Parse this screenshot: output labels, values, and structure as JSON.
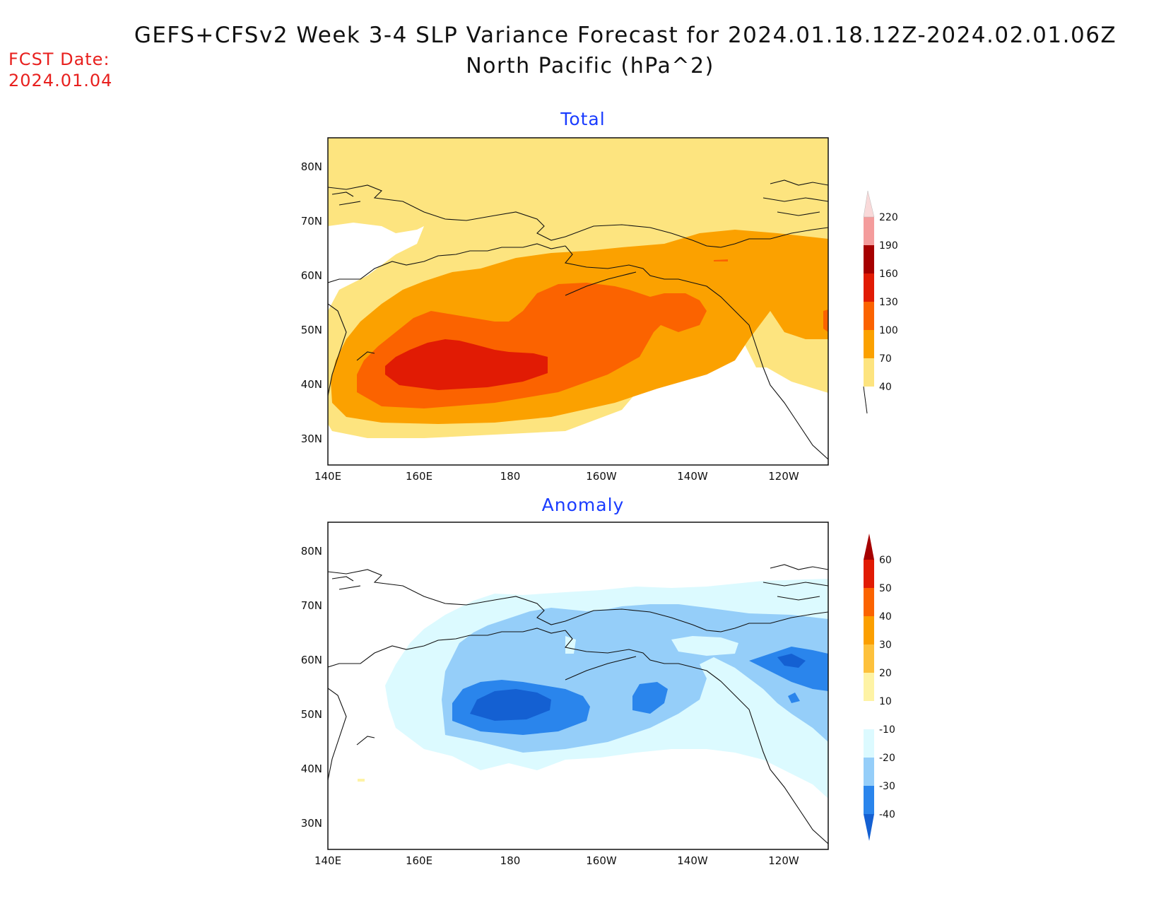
{
  "title_line1": "GEFS+CFSv2 Week 3-4 SLP Variance Forecast for 2024.01.18.12Z-2024.02.01.06Z",
  "title_line2": "North Pacific (hPa^2)",
  "fcst_label": "FCST Date:",
  "fcst_date": "2024.01.04",
  "panels": {
    "total": {
      "title": "Total",
      "colorbar_labels": [
        "40",
        "70",
        "100",
        "130",
        "160",
        "190",
        "220"
      ],
      "colors": [
        "#fde47f",
        "#fba100",
        "#fb6300",
        "#e11b04",
        "#a60000",
        "#f49c9c",
        "#f9d9d9"
      ]
    },
    "anomaly": {
      "title": "Anomaly",
      "colorbar_labels": [
        "-40",
        "-30",
        "-20",
        "-10",
        "10",
        "20",
        "30",
        "40",
        "50",
        "60"
      ],
      "colors": [
        "#1460d2",
        "#2a85ec",
        "#95cef9",
        "#dcfaff",
        "#ffffff",
        "#fef3a5",
        "#fdc13c",
        "#fb9f00",
        "#fb6300",
        "#e11b04",
        "#a60000"
      ]
    }
  },
  "axes": {
    "x_ticks": [
      "140E",
      "160E",
      "180",
      "160W",
      "140W",
      "120W"
    ],
    "y_ticks": [
      "80N",
      "70N",
      "60N",
      "50N",
      "40N",
      "30N"
    ]
  }
}
